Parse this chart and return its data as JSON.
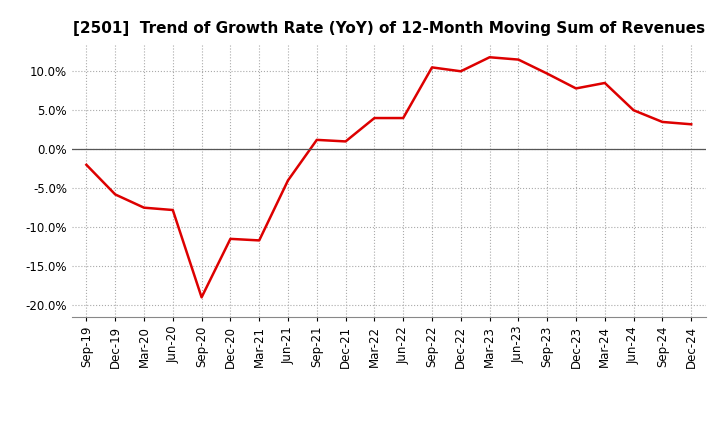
{
  "title": "[2501]  Trend of Growth Rate (YoY) of 12-Month Moving Sum of Revenues",
  "x_labels": [
    "Sep-19",
    "Dec-19",
    "Mar-20",
    "Jun-20",
    "Sep-20",
    "Dec-20",
    "Mar-21",
    "Jun-21",
    "Sep-21",
    "Dec-21",
    "Mar-22",
    "Jun-22",
    "Sep-22",
    "Dec-22",
    "Mar-23",
    "Jun-23",
    "Sep-23",
    "Dec-23",
    "Mar-24",
    "Jun-24",
    "Sep-24",
    "Dec-24"
  ],
  "y_values": [
    -2.0,
    -5.8,
    -7.5,
    -7.8,
    -19.0,
    -11.5,
    -11.7,
    -4.0,
    1.2,
    1.0,
    4.0,
    4.0,
    10.5,
    10.0,
    11.8,
    11.5,
    9.7,
    7.8,
    8.5,
    5.0,
    3.5,
    3.2
  ],
  "line_color": "#dd0000",
  "line_width": 1.8,
  "ylim": [
    -21.5,
    13.5
  ],
  "yticks": [
    -20.0,
    -15.0,
    -10.0,
    -5.0,
    0.0,
    5.0,
    10.0
  ],
  "background_color": "#ffffff",
  "plot_bg_color": "#ffffff",
  "grid_color": "#aaaaaa",
  "title_fontsize": 11,
  "tick_fontsize": 8.5
}
